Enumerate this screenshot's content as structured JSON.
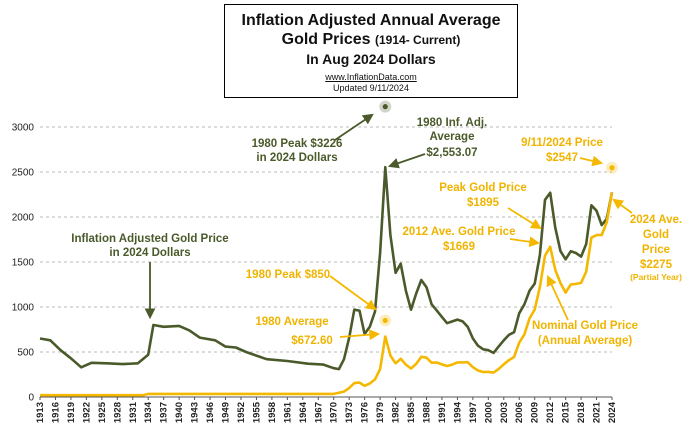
{
  "header": {
    "title_line1": "Inflation Adjusted Annual Average",
    "title_line2_main": "Gold Prices ",
    "title_line2_sub": "(1914- Current)",
    "title_line3": "In Aug 2024 Dollars",
    "url": "www.InflationData.com",
    "updated": "Updated 9/11/2024"
  },
  "colors": {
    "adjusted": "#4a5a2a",
    "nominal": "#f5b800",
    "grid": "#bbbbbb"
  },
  "chart_data": {
    "type": "line",
    "xlim": [
      1913,
      2024
    ],
    "ylim": [
      0,
      3000
    ],
    "yticks": [
      0,
      500,
      1000,
      1500,
      2000,
      2500,
      3000
    ],
    "xticks": [
      1913,
      1916,
      1919,
      1922,
      1925,
      1928,
      1931,
      1934,
      1937,
      1940,
      1943,
      1946,
      1949,
      1952,
      1955,
      1958,
      1961,
      1964,
      1967,
      1970,
      1973,
      1976,
      1979,
      1982,
      1985,
      1988,
      1991,
      1994,
      1997,
      2000,
      2003,
      2006,
      2009,
      2012,
      2015,
      2018,
      2021,
      2024
    ],
    "grid": true,
    "series": [
      {
        "points": [
          [
            1913,
            650
          ],
          [
            1915,
            630
          ],
          [
            1917,
            520
          ],
          [
            1919,
            430
          ],
          [
            1921,
            330
          ],
          [
            1923,
            380
          ],
          [
            1926,
            375
          ],
          [
            1929,
            365
          ],
          [
            1932,
            375
          ],
          [
            1934,
            470
          ],
          [
            1935,
            800
          ],
          [
            1937,
            780
          ],
          [
            1940,
            790
          ],
          [
            1942,
            740
          ],
          [
            1944,
            660
          ],
          [
            1947,
            630
          ],
          [
            1949,
            560
          ],
          [
            1951,
            550
          ],
          [
            1953,
            500
          ],
          [
            1955,
            460
          ],
          [
            1957,
            420
          ],
          [
            1961,
            400
          ],
          [
            1965,
            370
          ],
          [
            1968,
            360
          ],
          [
            1970,
            320
          ],
          [
            1971,
            310
          ],
          [
            1972,
            420
          ],
          [
            1973,
            660
          ],
          [
            1974,
            970
          ],
          [
            1975,
            960
          ],
          [
            1976,
            700
          ],
          [
            1977,
            780
          ],
          [
            1978,
            950
          ],
          [
            1979,
            1600
          ],
          [
            1980,
            2553
          ],
          [
            1981,
            1800
          ],
          [
            1982,
            1380
          ],
          [
            1983,
            1480
          ],
          [
            1984,
            1180
          ],
          [
            1985,
            970
          ],
          [
            1986,
            1150
          ],
          [
            1987,
            1300
          ],
          [
            1988,
            1220
          ],
          [
            1989,
            1030
          ],
          [
            1990,
            960
          ],
          [
            1991,
            890
          ],
          [
            1992,
            820
          ],
          [
            1993,
            840
          ],
          [
            1994,
            860
          ],
          [
            1995,
            840
          ],
          [
            1996,
            780
          ],
          [
            1997,
            650
          ],
          [
            1998,
            570
          ],
          [
            1999,
            530
          ],
          [
            2000,
            520
          ],
          [
            2001,
            490
          ],
          [
            2002,
            560
          ],
          [
            2003,
            630
          ],
          [
            2004,
            690
          ],
          [
            2005,
            720
          ],
          [
            2006,
            930
          ],
          [
            2007,
            1030
          ],
          [
            2008,
            1180
          ],
          [
            2009,
            1260
          ],
          [
            2010,
            1580
          ],
          [
            2011,
            2190
          ],
          [
            2012,
            2270
          ],
          [
            2013,
            1880
          ],
          [
            2014,
            1620
          ],
          [
            2015,
            1530
          ],
          [
            2016,
            1620
          ],
          [
            2017,
            1600
          ],
          [
            2018,
            1560
          ],
          [
            2019,
            1700
          ],
          [
            2020,
            2130
          ],
          [
            2021,
            2070
          ],
          [
            2022,
            1910
          ],
          [
            2023,
            1980
          ],
          [
            2024,
            2275
          ]
        ]
      },
      {
        "points": [
          [
            1913,
            20
          ],
          [
            1933,
            20
          ],
          [
            1934,
            35
          ],
          [
            1970,
            35
          ],
          [
            1972,
            60
          ],
          [
            1973,
            100
          ],
          [
            1974,
            155
          ],
          [
            1975,
            160
          ],
          [
            1976,
            125
          ],
          [
            1977,
            150
          ],
          [
            1978,
            195
          ],
          [
            1979,
            310
          ],
          [
            1980,
            672.6
          ],
          [
            1981,
            460
          ],
          [
            1982,
            375
          ],
          [
            1983,
            425
          ],
          [
            1984,
            360
          ],
          [
            1985,
            317
          ],
          [
            1986,
            368
          ],
          [
            1987,
            447
          ],
          [
            1988,
            437
          ],
          [
            1989,
            381
          ],
          [
            1990,
            383
          ],
          [
            1991,
            362
          ],
          [
            1992,
            344
          ],
          [
            1993,
            360
          ],
          [
            1994,
            384
          ],
          [
            1995,
            384
          ],
          [
            1996,
            387
          ],
          [
            1997,
            331
          ],
          [
            1998,
            294
          ],
          [
            1999,
            278
          ],
          [
            2000,
            279
          ],
          [
            2001,
            271
          ],
          [
            2002,
            310
          ],
          [
            2003,
            363
          ],
          [
            2004,
            409
          ],
          [
            2005,
            444
          ],
          [
            2006,
            603
          ],
          [
            2007,
            695
          ],
          [
            2008,
            872
          ],
          [
            2009,
            972
          ],
          [
            2010,
            1225
          ],
          [
            2011,
            1571
          ],
          [
            2012,
            1669
          ],
          [
            2013,
            1411
          ],
          [
            2014,
            1266
          ],
          [
            2015,
            1160
          ],
          [
            2016,
            1250
          ],
          [
            2017,
            1257
          ],
          [
            2018,
            1268
          ],
          [
            2019,
            1393
          ],
          [
            2020,
            1770
          ],
          [
            2021,
            1799
          ],
          [
            2022,
            1800
          ],
          [
            2023,
            1943
          ],
          [
            2024,
            2275
          ]
        ]
      }
    ],
    "annotations": [
      {
        "id": "adj-label",
        "lines": [
          "Inflation Adjusted Gold Price",
          "in 2024 Dollars"
        ],
        "color": "adjusted"
      },
      {
        "id": "peak-1980-adj",
        "lines": [
          "1980 Peak $3226",
          "in 2024 Dollars"
        ],
        "color": "adjusted",
        "marker": [
          1980,
          3226
        ]
      },
      {
        "id": "avg-1980-adj",
        "lines": [
          "1980 Inf. Adj.",
          "Average",
          "$2,553.07"
        ],
        "color": "adjusted"
      },
      {
        "id": "peak-1980-nom",
        "lines": [
          "1980 Peak $850"
        ],
        "color": "nominal",
        "marker": [
          1980,
          850
        ]
      },
      {
        "id": "avg-1980-nom",
        "lines": [
          "1980 Average",
          "$672.60"
        ],
        "color": "nominal"
      },
      {
        "id": "price-2024",
        "lines": [
          "9/11/2024 Price",
          "$2547"
        ],
        "color": "nominal",
        "marker": [
          2024,
          2547
        ]
      },
      {
        "id": "peak-gold",
        "lines": [
          "Peak Gold Price",
          "$1895"
        ],
        "color": "nominal"
      },
      {
        "id": "avg-2012",
        "lines": [
          "2012 Ave. Gold Price",
          "$1669"
        ],
        "color": "nominal"
      },
      {
        "id": "nominal-label",
        "lines": [
          "Nominal Gold Price",
          "(Annual Average)"
        ],
        "color": "nominal"
      },
      {
        "id": "avg-2024",
        "lines": [
          "2024 Ave.",
          "Gold",
          "Price",
          "$2275"
        ],
        "small": "(Partial Year)",
        "color": "nominal"
      }
    ]
  }
}
